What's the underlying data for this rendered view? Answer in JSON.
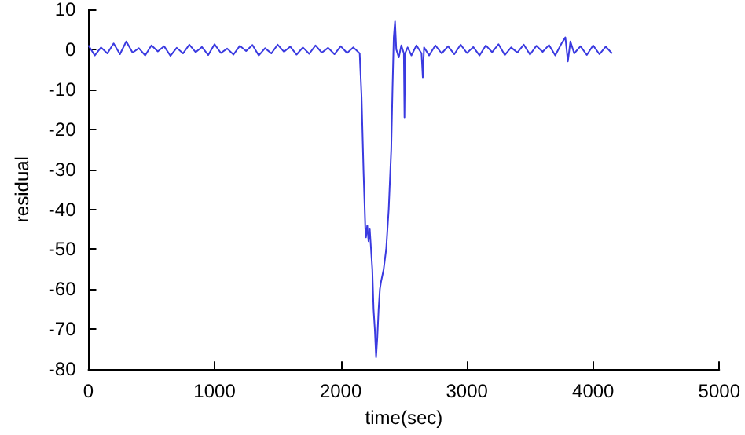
{
  "chart_data": {
    "type": "line",
    "xlabel": "time(sec)",
    "ylabel": "residual",
    "x": [
      0,
      50,
      100,
      150,
      200,
      250,
      300,
      350,
      400,
      450,
      500,
      550,
      600,
      650,
      700,
      750,
      800,
      850,
      900,
      950,
      1000,
      1050,
      1100,
      1150,
      1200,
      1250,
      1300,
      1350,
      1400,
      1450,
      1500,
      1550,
      1600,
      1650,
      1700,
      1750,
      1800,
      1850,
      1900,
      1950,
      2000,
      2050,
      2100,
      2150,
      2165,
      2180,
      2195,
      2200,
      2210,
      2220,
      2230,
      2240,
      2250,
      2260,
      2270,
      2280,
      2290,
      2300,
      2310,
      2320,
      2340,
      2360,
      2380,
      2400,
      2410,
      2420,
      2430,
      2440,
      2460,
      2480,
      2500,
      2505,
      2510,
      2530,
      2560,
      2600,
      2640,
      2650,
      2660,
      2700,
      2750,
      2800,
      2850,
      2900,
      2950,
      3000,
      3050,
      3100,
      3150,
      3200,
      3250,
      3300,
      3350,
      3400,
      3450,
      3500,
      3550,
      3600,
      3650,
      3700,
      3750,
      3780,
      3800,
      3820,
      3850,
      3900,
      3950,
      4000,
      4050,
      4100,
      4150
    ],
    "values": [
      1,
      -1.5,
      0.5,
      -1,
      1.5,
      -1.2,
      2,
      -0.8,
      0.3,
      -1.5,
      1,
      -0.5,
      0.8,
      -1.6,
      0.4,
      -1,
      1.2,
      -0.7,
      0.6,
      -1.4,
      1.3,
      -0.9,
      0.2,
      -1.3,
      0.9,
      -0.4,
      1.1,
      -1.5,
      0.3,
      -1,
      1.2,
      -0.6,
      0.7,
      -1.3,
      0.5,
      -1.1,
      1,
      -0.8,
      0.4,
      -1.2,
      0.8,
      -0.9,
      0.5,
      -1,
      -12,
      -30,
      -45,
      -47,
      -44,
      -48,
      -45,
      -50,
      -55,
      -65,
      -70,
      -77,
      -72,
      -65,
      -60,
      -58,
      -55,
      -50,
      -40,
      -25,
      -10,
      3,
      7,
      0,
      -2,
      1,
      -1,
      -17,
      -1,
      0.5,
      -1.5,
      1,
      -1,
      -7,
      0.5,
      -1.5,
      1,
      -1,
      0.8,
      -1.2,
      1.2,
      -0.9,
      0.6,
      -1.5,
      1,
      -0.7,
      1.3,
      -1.4,
      0.5,
      -0.8,
      1.2,
      -1.3,
      0.9,
      -0.6,
      1.1,
      -1.5,
      1.5,
      3,
      -3,
      2,
      -1,
      0.8,
      -1.4,
      1,
      -1.2,
      0.7,
      -1
    ],
    "color": "#3a3ae0",
    "xlim": [
      0,
      5000
    ],
    "xticks": [
      0,
      1000,
      2000,
      3000,
      4000,
      5000
    ],
    "ylim": [
      -80,
      10
    ],
    "yticks": [
      -80,
      -70,
      -60,
      -50,
      -40,
      -30,
      -20,
      -10,
      0,
      10
    ],
    "grid": false,
    "marker": "none",
    "line_style": "solid"
  }
}
